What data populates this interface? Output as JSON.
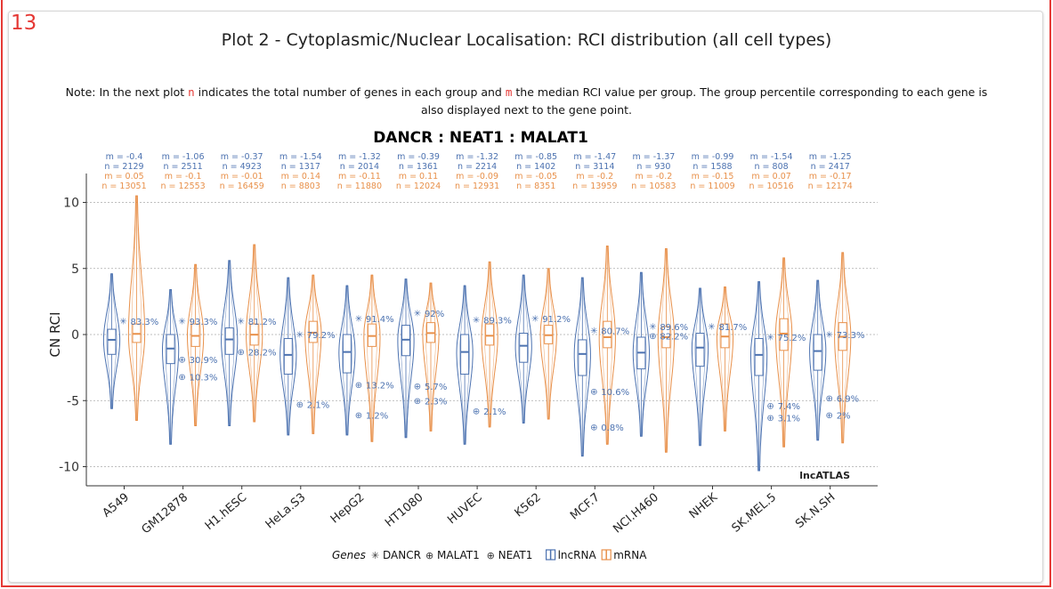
{
  "marker_number": "13",
  "plot_title": "Plot 2 - Cytoplasmic/Nuclear Localisation: RCI distribution (all cell types)",
  "note": {
    "part1": "Note: In the next plot ",
    "n_symbol": "n",
    "part2": " indicates the total number of genes in each group and ",
    "m_symbol": "m",
    "part3": " the median RCI value per group. The group percentile corresponding to each gene is also displayed next to the gene point."
  },
  "colors": {
    "lncRNA": "#4c72b0",
    "mRNA": "#e8904a",
    "frame": "#e53935"
  },
  "chart_data": {
    "type": "violin",
    "title": "DANCR : NEAT1 : MALAT1",
    "ylabel": "CN RCI",
    "xlabel": "",
    "ylim": [
      -11.5,
      13.5
    ],
    "yticks": [
      10,
      5,
      0,
      -5,
      -10
    ],
    "grid": "horizontal dotted",
    "watermark": "lncATLAS",
    "categories": [
      "A549",
      "GM12878",
      "H1.hESC",
      "HeLa.S3",
      "HepG2",
      "HT1080",
      "HUVEC",
      "K562",
      "MCF.7",
      "NCI.H460",
      "NHEK",
      "SK.MEL.5",
      "SK.N.SH"
    ],
    "series": [
      {
        "name": "lncRNA",
        "median": [
          -0.4,
          -1.06,
          -0.37,
          -1.54,
          -1.32,
          -0.39,
          -1.32,
          -0.85,
          -1.47,
          -1.37,
          -0.99,
          -1.54,
          -1.25
        ],
        "n": [
          2129,
          2511,
          4923,
          1317,
          2014,
          1361,
          2214,
          1402,
          3114,
          930,
          1588,
          808,
          2417
        ],
        "m_labels": [
          "m = -0.4",
          "m = -1.06",
          "m = -0.37",
          "m = -1.54",
          "m = -1.32",
          "m = -0.39",
          "m = -1.32",
          "m = -0.85",
          "m = -1.47",
          "m = -1.37",
          "m = -0.99",
          "m = -1.54",
          "m = -1.25"
        ],
        "n_labels": [
          "n = 2129",
          "n = 2511",
          "n = 4923",
          "n = 1317",
          "n = 2014",
          "n = 1361",
          "n = 2214",
          "n = 1402",
          "n = 3114",
          "n = 930",
          "n = 1588",
          "n = 808",
          "n = 2417"
        ],
        "q1": [
          -1.5,
          -2.2,
          -1.5,
          -3.0,
          -2.9,
          -1.6,
          -3.0,
          -2.1,
          -3.1,
          -2.6,
          -2.4,
          -3.1,
          -2.7
        ],
        "q3": [
          0.4,
          0.0,
          0.5,
          -0.3,
          0.0,
          0.7,
          0.0,
          0.1,
          -0.4,
          -0.2,
          0.1,
          -0.3,
          0.0
        ],
        "min": [
          -5.6,
          -8.3,
          -6.9,
          -7.6,
          -7.6,
          -7.8,
          -8.3,
          -6.7,
          -9.2,
          -7.7,
          -8.4,
          -10.3,
          -8.0
        ],
        "max": [
          4.6,
          3.4,
          5.6,
          4.3,
          3.7,
          4.2,
          3.7,
          4.5,
          4.3,
          4.7,
          3.5,
          4.0,
          4.1
        ]
      },
      {
        "name": "mRNA",
        "median": [
          0.05,
          -0.1,
          -0.01,
          0.14,
          -0.11,
          0.11,
          -0.09,
          -0.05,
          -0.2,
          -0.2,
          -0.15,
          0.07,
          -0.17
        ],
        "n": [
          13051,
          12553,
          16459,
          8803,
          11880,
          12024,
          12931,
          8351,
          13959,
          10583,
          11009,
          10516,
          12174
        ],
        "m_labels": [
          "m = 0.05",
          "m = -0.1",
          "m = -0.01",
          "m = 0.14",
          "m = -0.11",
          "m = 0.11",
          "m = -0.09",
          "m = -0.05",
          "m = -0.2",
          "m = -0.2",
          "m = -0.15",
          "m = 0.07",
          "m = -0.17"
        ],
        "n_labels": [
          "n = 13051",
          "n = 12553",
          "n = 16459",
          "n = 8803",
          "n = 11880",
          "n = 12024",
          "n = 12931",
          "n = 8351",
          "n = 13959",
          "n = 10583",
          "n = 11009",
          "n = 10516",
          "n = 12174"
        ],
        "q1": [
          -0.6,
          -0.9,
          -0.8,
          -0.6,
          -0.9,
          -0.6,
          -0.8,
          -0.7,
          -1.0,
          -1.0,
          -1.0,
          -1.2,
          -1.2
        ],
        "q3": [
          0.8,
          0.8,
          0.8,
          1.0,
          0.8,
          0.9,
          0.8,
          0.7,
          1.0,
          0.6,
          0.8,
          1.2,
          0.9
        ],
        "min": [
          -6.5,
          -6.9,
          -6.6,
          -7.5,
          -8.1,
          -7.3,
          -7.0,
          -6.4,
          -8.3,
          -8.9,
          -7.3,
          -8.5,
          -8.2
        ],
        "max": [
          10.5,
          5.3,
          6.8,
          4.5,
          4.5,
          3.9,
          5.5,
          5.0,
          6.7,
          6.5,
          3.6,
          5.8,
          6.2
        ]
      }
    ],
    "genes": [
      {
        "name": "DANCR",
        "symbol": "✳",
        "points": [
          {
            "y": 1.0,
            "label": "83.3%"
          },
          {
            "y": 1.0,
            "label": "93.3%"
          },
          {
            "y": 1.0,
            "label": "81.2%"
          },
          {
            "y": 0.0,
            "label": "79.2%"
          },
          {
            "y": 1.2,
            "label": "91.4%"
          },
          {
            "y": 1.6,
            "label": "92%"
          },
          {
            "y": 1.1,
            "label": "89.3%"
          },
          {
            "y": 1.2,
            "label": "91.2%"
          },
          {
            "y": 0.3,
            "label": "80.7%"
          },
          {
            "y": 0.6,
            "label": "89.6%"
          },
          {
            "y": 0.6,
            "label": "81.7%"
          },
          {
            "y": -0.2,
            "label": "75.2%"
          },
          {
            "y": 0.0,
            "label": "73.3%"
          }
        ]
      },
      {
        "name": "MALAT1",
        "symbol": "⊕",
        "points": [
          {
            "y": null,
            "label": ""
          },
          {
            "y": -3.2,
            "label": "10.3%"
          },
          {
            "y": -1.3,
            "label": "28.2%"
          },
          {
            "y": -5.3,
            "label": "2.1%"
          },
          {
            "y": -6.1,
            "label": "1.2%"
          },
          {
            "y": -5.0,
            "label": "2.3%"
          },
          {
            "y": -5.8,
            "label": "2.1%"
          },
          {
            "y": null,
            "label": ""
          },
          {
            "y": -7.0,
            "label": "0.8%"
          },
          {
            "y": -0.1,
            "label": "82.2%"
          },
          {
            "y": null,
            "label": ""
          },
          {
            "y": -6.3,
            "label": "3.1%"
          },
          {
            "y": -6.1,
            "label": "2%"
          }
        ]
      },
      {
        "name": "NEAT1",
        "symbol": "⊕",
        "points": [
          {
            "y": null,
            "label": ""
          },
          {
            "y": -1.9,
            "label": "30.9%"
          },
          {
            "y": null,
            "label": ""
          },
          {
            "y": null,
            "label": ""
          },
          {
            "y": -3.8,
            "label": "13.2%"
          },
          {
            "y": -3.9,
            "label": "5.7%"
          },
          {
            "y": null,
            "label": ""
          },
          {
            "y": null,
            "label": ""
          },
          {
            "y": -4.3,
            "label": "10.6%"
          },
          {
            "y": null,
            "label": ""
          },
          {
            "y": null,
            "label": ""
          },
          {
            "y": -5.4,
            "label": "7.4%"
          },
          {
            "y": -4.8,
            "label": "6.9%"
          }
        ]
      }
    ],
    "legend": {
      "title": "Genes",
      "placement": "bottom",
      "gene_entries": [
        "DANCR",
        "MALAT1",
        "NEAT1"
      ],
      "gene_symbols": [
        "✳",
        "⊕",
        "⊕"
      ],
      "group_entries": [
        "lncRNA",
        "mRNA"
      ]
    }
  }
}
